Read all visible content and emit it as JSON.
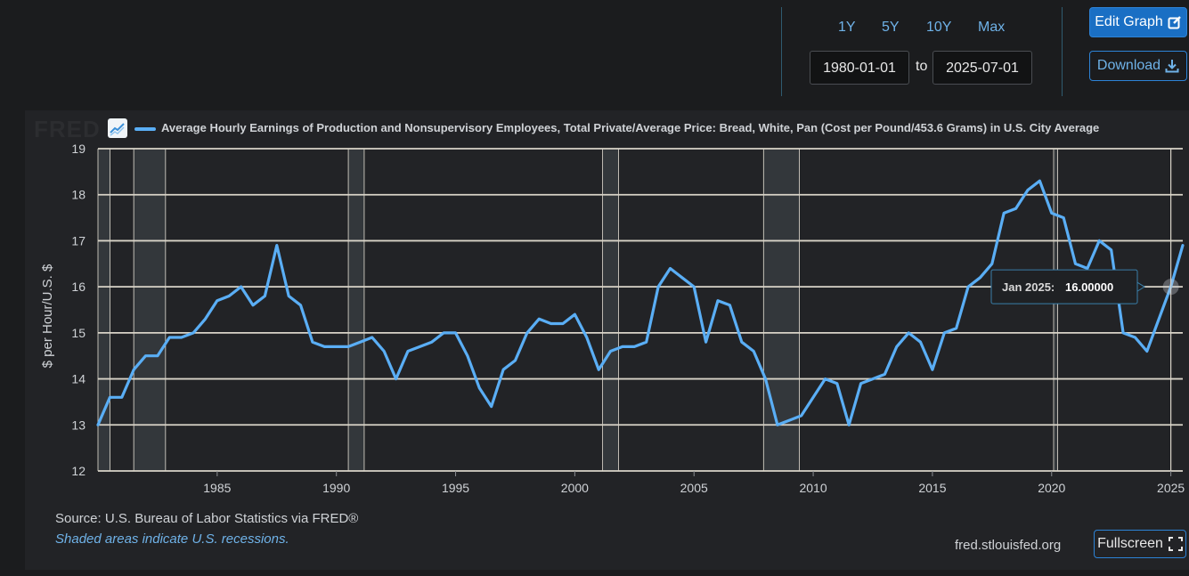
{
  "controls": {
    "ranges": [
      "1Y",
      "5Y",
      "10Y",
      "Max"
    ],
    "start_date": "1980-01-01",
    "to_label": "to",
    "end_date": "2025-07-01",
    "edit_label": "Edit Graph",
    "download_label": "Download",
    "fullscreen_label": "Fullscreen"
  },
  "logo_text": "FRED",
  "footer": {
    "source": "Source: U.S. Bureau of Labor Statistics via FRED®",
    "shaded_note": "Shaded areas indicate U.S. recessions.",
    "site": "fred.stlouisfed.org"
  },
  "colors": {
    "series": "#5aaef5",
    "recession": "#33373b",
    "grid": "#d9d4c8",
    "accent": "#1a6fc4"
  },
  "icons": [
    "fred-chart-icon",
    "edit-icon",
    "download-icon",
    "fullscreen-icon"
  ],
  "tooltip": {
    "date": "Jan 2025:",
    "value": "16.00000"
  },
  "chart_data": {
    "type": "line",
    "title": "Average Hourly Earnings of Production and Nonsupervisory Employees, Total Private/Average Price: Bread, White, Pan (Cost per Pound/453.6 Grams) in U.S. City Average",
    "xlabel": "",
    "ylabel": "$ per Hour/U.S. $",
    "ylim": [
      12,
      19
    ],
    "xlim": [
      "1980-01-01",
      "2025-07-01"
    ],
    "yticks": [
      12,
      13,
      14,
      15,
      16,
      17,
      18,
      19
    ],
    "xticks": [
      1985,
      1990,
      1995,
      2000,
      2005,
      2010,
      2015,
      2020,
      2025
    ],
    "grid": true,
    "recessions": [
      [
        "1980-01-01",
        "1980-07-01"
      ],
      [
        "1981-07-01",
        "1982-11-01"
      ],
      [
        "1990-07-01",
        "1991-03-01"
      ],
      [
        "2001-03-01",
        "2001-11-01"
      ],
      [
        "2007-12-01",
        "2009-06-01"
      ],
      [
        "2020-02-01",
        "2020-04-01"
      ]
    ],
    "series": [
      {
        "x": [
          "1980-01-01",
          "1980-07-01",
          "1981-01-01",
          "1981-07-01",
          "1982-01-01",
          "1982-07-01",
          "1983-01-01",
          "1983-07-01",
          "1984-01-01",
          "1984-07-01",
          "1985-01-01",
          "1985-07-01",
          "1986-01-01",
          "1986-07-01",
          "1987-01-01",
          "1987-07-01",
          "1988-01-01",
          "1988-07-01",
          "1989-01-01",
          "1989-07-01",
          "1990-01-01",
          "1990-07-01",
          "1991-01-01",
          "1991-07-01",
          "1992-01-01",
          "1992-07-01",
          "1993-01-01",
          "1993-07-01",
          "1994-01-01",
          "1994-07-01",
          "1995-01-01",
          "1995-07-01",
          "1996-01-01",
          "1996-07-01",
          "1997-01-01",
          "1997-07-01",
          "1998-01-01",
          "1998-07-01",
          "1999-01-01",
          "1999-07-01",
          "2000-01-01",
          "2000-07-01",
          "2001-01-01",
          "2001-07-01",
          "2002-01-01",
          "2002-07-01",
          "2003-01-01",
          "2003-07-01",
          "2004-01-01",
          "2004-07-01",
          "2005-01-01",
          "2005-07-01",
          "2006-01-01",
          "2006-07-01",
          "2007-01-01",
          "2007-07-01",
          "2008-01-01",
          "2008-07-01",
          "2009-01-01",
          "2009-07-01",
          "2010-01-01",
          "2010-07-01",
          "2011-01-01",
          "2011-07-01",
          "2012-01-01",
          "2012-07-01",
          "2013-01-01",
          "2013-07-01",
          "2014-01-01",
          "2014-07-01",
          "2015-01-01",
          "2015-07-01",
          "2016-01-01",
          "2016-07-01",
          "2017-01-01",
          "2017-07-01",
          "2018-01-01",
          "2018-07-01",
          "2019-01-01",
          "2019-07-01",
          "2020-01-01",
          "2020-07-01",
          "2021-01-01",
          "2021-07-01",
          "2022-01-01",
          "2022-07-01",
          "2023-01-01",
          "2023-07-01",
          "2024-01-01",
          "2024-07-01",
          "2025-01-01",
          "2025-07-01"
        ],
        "y": [
          13.0,
          13.6,
          13.6,
          14.2,
          14.5,
          14.5,
          14.9,
          14.9,
          15.0,
          15.3,
          15.7,
          15.8,
          16.0,
          15.6,
          15.8,
          16.9,
          15.8,
          15.6,
          14.8,
          14.7,
          14.7,
          14.7,
          14.8,
          14.9,
          14.6,
          14.0,
          14.6,
          14.7,
          14.8,
          15.0,
          15.0,
          14.5,
          13.8,
          13.4,
          14.2,
          14.4,
          15.0,
          15.3,
          15.2,
          15.2,
          15.4,
          14.9,
          14.2,
          14.6,
          14.7,
          14.7,
          14.8,
          16.0,
          16.4,
          16.2,
          16.0,
          14.8,
          15.7,
          15.6,
          14.8,
          14.6,
          14.0,
          13.0,
          13.1,
          13.2,
          13.6,
          14.0,
          13.9,
          13.0,
          13.9,
          14.0,
          14.1,
          14.7,
          15.0,
          14.8,
          14.2,
          15.0,
          15.1,
          16.0,
          16.2,
          16.5,
          17.6,
          17.7,
          18.1,
          18.3,
          17.6,
          17.5,
          16.5,
          16.4,
          17.0,
          16.8,
          15.0,
          14.9,
          14.6,
          15.3,
          16.0,
          16.9
        ]
      }
    ]
  }
}
